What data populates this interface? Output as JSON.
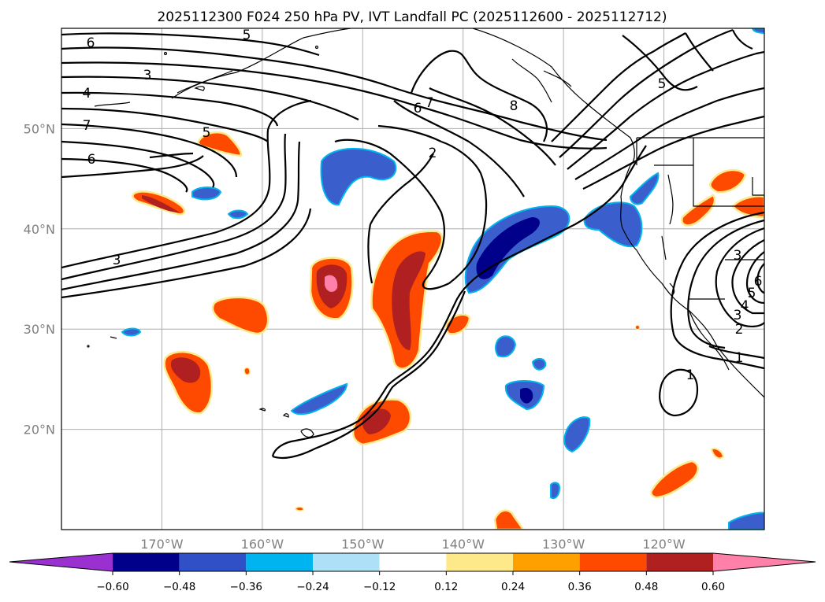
{
  "chart_data": {
    "type": "heatmap",
    "title": "2025112300 F024 250 hPa PV, IVT Landfall PC (2025112600 - 2025112712)",
    "map": {
      "lon_range": [
        -180,
        -110
      ],
      "lat_range": [
        10,
        60
      ],
      "lon_ticks": [
        -170,
        -160,
        -150,
        -140,
        -130,
        -120
      ],
      "lat_ticks": [
        20,
        30,
        40,
        50
      ],
      "lon_tick_labels": [
        "170°W",
        "160°W",
        "150°W",
        "140°W",
        "130°W",
        "120°W"
      ],
      "lat_tick_labels": [
        "20°N",
        "30°N",
        "40°N",
        "50°N"
      ],
      "grid": true
    },
    "colorbar": {
      "extend": "both",
      "tick_labels": [
        "−0.60",
        "−0.48",
        "−0.36",
        "−0.24",
        "−0.12",
        "0.12",
        "0.24",
        "0.36",
        "0.48",
        "0.60"
      ],
      "colors": [
        "#9a30d0",
        "#00008a",
        "#3050c8",
        "#00b4f0",
        "#aee0f8",
        "#ffffff",
        "#fde98a",
        "#fda000",
        "#fe4a00",
        "#b02020",
        "#ff80a8"
      ]
    },
    "pv_contour_labels": [
      "6",
      "5",
      "3",
      "4",
      "7",
      "6",
      "5",
      "3",
      "7",
      "6",
      "8",
      "2",
      "5",
      "3",
      "6",
      "5",
      "4",
      "3",
      "2",
      "1",
      "1"
    ]
  }
}
